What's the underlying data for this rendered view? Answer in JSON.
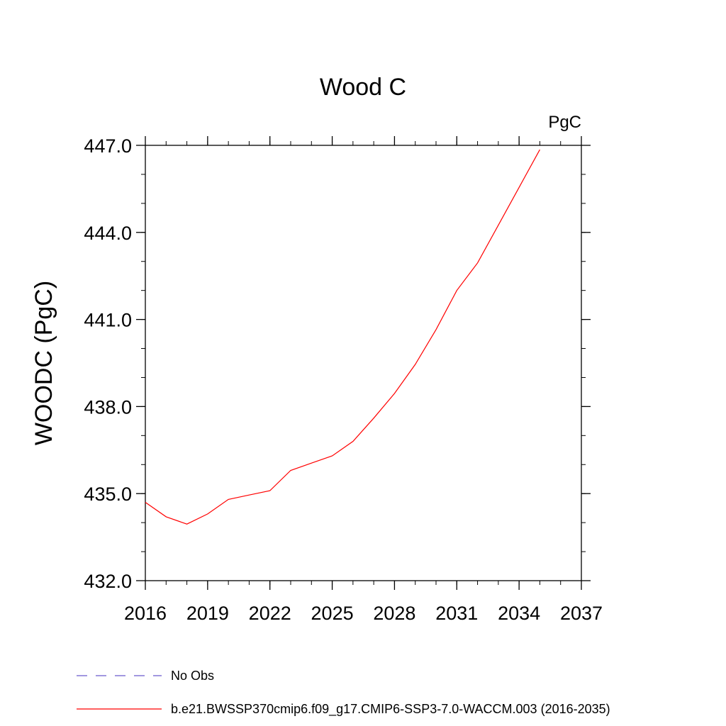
{
  "chart_data": {
    "type": "line",
    "title": "Wood C",
    "units_label": "PgC",
    "ylabel": "WOODC  (PgC)",
    "xlabel": "",
    "xlim": [
      2016,
      2037
    ],
    "ylim": [
      432,
      447
    ],
    "x_ticks": [
      2016,
      2019,
      2022,
      2025,
      2028,
      2031,
      2034,
      2037
    ],
    "y_ticks": [
      "432.0",
      "435.0",
      "438.0",
      "441.0",
      "444.0",
      "447.0"
    ],
    "y_tick_values": [
      432,
      435,
      438,
      441,
      444,
      447
    ],
    "y_minor_step": 1,
    "x_minor_step": 1,
    "grid": false,
    "legend_position": "bottom",
    "series": [
      {
        "name": "b.e21.BWSSP370cmip6.f09_g17.CMIP6-SSP3-7.0-WACCM.003 (2016-2035)",
        "color": "#ff0000",
        "style": "solid",
        "x": [
          2016,
          2017,
          2018,
          2019,
          2020,
          2021,
          2022,
          2023,
          2024,
          2025,
          2026,
          2027,
          2028,
          2029,
          2030,
          2031,
          2032,
          2033,
          2034,
          2035
        ],
        "values": [
          434.7,
          434.2,
          433.95,
          434.3,
          434.8,
          434.95,
          435.1,
          435.8,
          436.05,
          436.3,
          436.8,
          437.6,
          438.45,
          439.45,
          440.65,
          442.0,
          442.95,
          444.25,
          445.55,
          446.85
        ]
      }
    ],
    "legend": [
      {
        "label": "No Obs",
        "color": "#6a5acd",
        "style": "dashed"
      },
      {
        "label": "b.e21.BWSSP370cmip6.f09_g17.CMIP6-SSP3-7.0-WACCM.003 (2016-2035)",
        "color": "#ff0000",
        "style": "solid"
      }
    ]
  }
}
